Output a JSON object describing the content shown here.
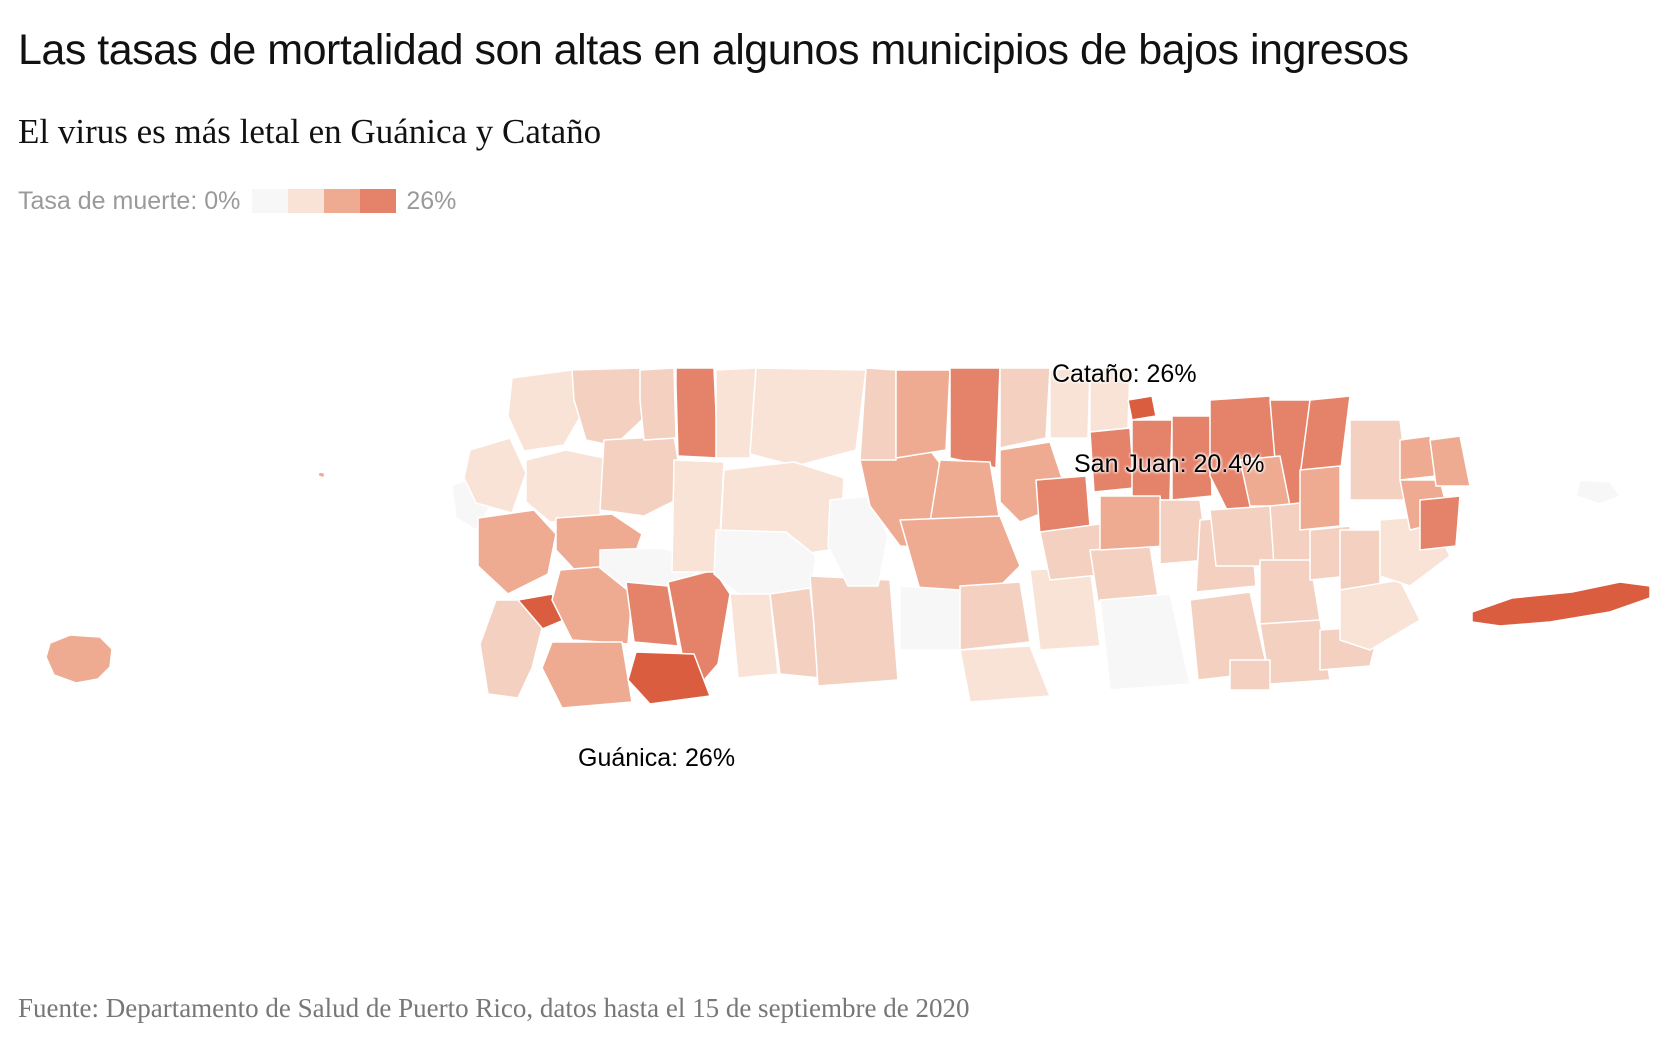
{
  "title": "Las tasas de mortalidad son altas en algunos municipios de bajos ingresos",
  "subtitle": "El virus es más letal en Guánica y Cataño",
  "legend": {
    "label": "Tasa de muerte: 0%",
    "max_label": "26%",
    "colors": [
      "#f7f7f7",
      "#f8e3d6",
      "#eeab92",
      "#e4836a"
    ]
  },
  "annotations": {
    "catano": "Cataño: 26%",
    "san_juan": "San Juan: 20.4%",
    "guanica": "Guánica: 26%"
  },
  "source": "Fuente: Departamento de Salud de Puerto Rico, datos hasta el 15 de septiembre de 2020",
  "palette": {
    "none": "#f7f7f7",
    "low": "#f8e3d6",
    "mid_low": "#f3d0c0",
    "mid": "#eeab92",
    "high": "#e4836a",
    "max": "#db5d40"
  }
}
